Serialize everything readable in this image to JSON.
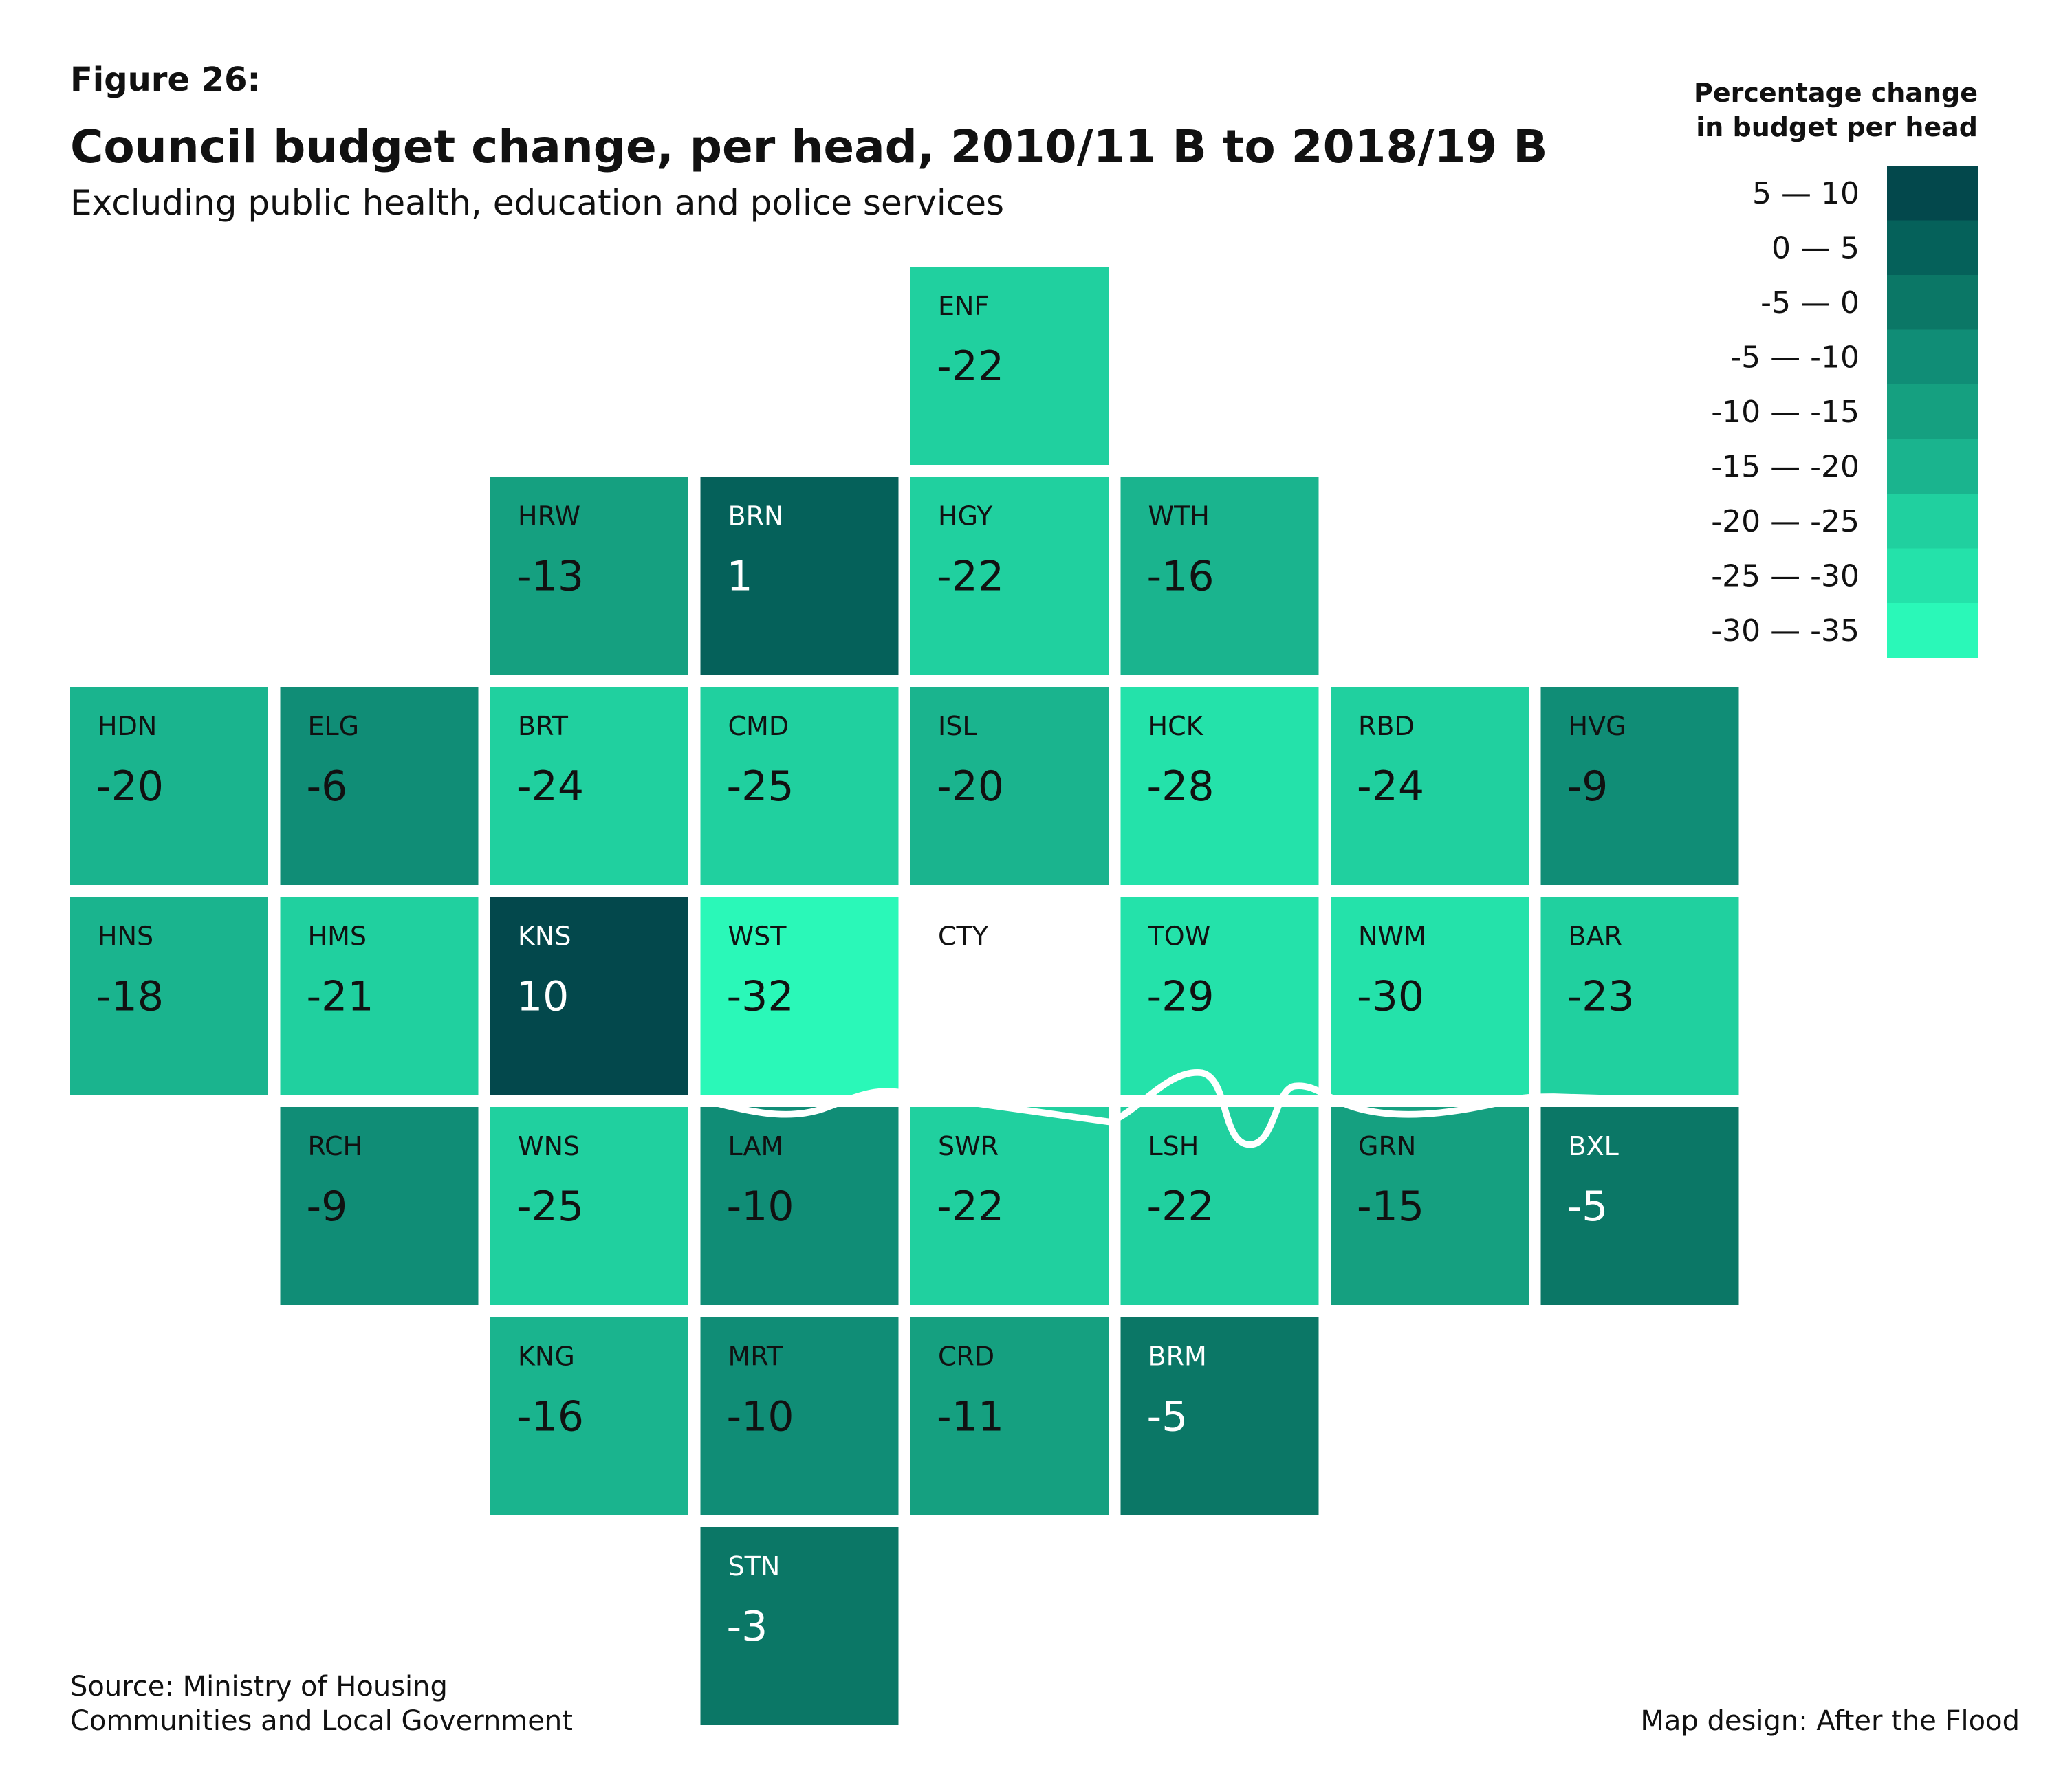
{
  "chart_data": {
    "type": "tilemap",
    "figure_label": "Figure 26:",
    "title": "Council budget change, per head, 2010/11 B to 2018/19 B",
    "subtitle": "Excluding public health, education and police services",
    "legend": {
      "title": [
        "Percentage change",
        "in budget per head"
      ],
      "bins": [
        {
          "range": [
            5,
            10
          ],
          "label": "5 — 10",
          "color": "#03484c"
        },
        {
          "range": [
            0,
            5
          ],
          "label": "0 — 5",
          "color": "#05615a"
        },
        {
          "range": [
            -5,
            0
          ],
          "label": "-5 — 0",
          "color": "#0b7766"
        },
        {
          "range": [
            -10,
            -5
          ],
          "label": "-5 — -10",
          "color": "#108d76"
        },
        {
          "range": [
            -15,
            -10
          ],
          "label": "-10 — -15",
          "color": "#15a080"
        },
        {
          "range": [
            -20,
            -15
          ],
          "label": "-15 — -20",
          "color": "#1ab48e"
        },
        {
          "range": [
            -25,
            -20
          ],
          "label": "-20 — -25",
          "color": "#20d09f"
        },
        {
          "range": [
            -30,
            -25
          ],
          "label": "-25 — -30",
          "color": "#24e2aa"
        },
        {
          "range": [
            -35,
            -30
          ],
          "label": "-30 — -35",
          "color": "#2af8b8"
        }
      ]
    },
    "grid": [
      [
        null,
        null,
        null,
        null,
        {
          "code": "ENF",
          "value": -22
        },
        null,
        null,
        null
      ],
      [
        null,
        null,
        {
          "code": "HRW",
          "value": -13
        },
        {
          "code": "BRN",
          "value": 1
        },
        {
          "code": "HGY",
          "value": -22
        },
        {
          "code": "WTH",
          "value": -16
        },
        null,
        null
      ],
      [
        {
          "code": "HDN",
          "value": -20
        },
        {
          "code": "ELG",
          "value": -6
        },
        {
          "code": "BRT",
          "value": -24
        },
        {
          "code": "CMD",
          "value": -25
        },
        {
          "code": "ISL",
          "value": -20
        },
        {
          "code": "HCK",
          "value": -28
        },
        {
          "code": "RBD",
          "value": -24
        },
        {
          "code": "HVG",
          "value": -9
        }
      ],
      [
        {
          "code": "HNS",
          "value": -18
        },
        {
          "code": "HMS",
          "value": -21
        },
        {
          "code": "KNS",
          "value": 10
        },
        {
          "code": "WST",
          "value": -32
        },
        {
          "code": "CTY",
          "value": null
        },
        {
          "code": "TOW",
          "value": -29
        },
        {
          "code": "NWM",
          "value": -30
        },
        {
          "code": "BAR",
          "value": -23
        }
      ],
      [
        null,
        {
          "code": "RCH",
          "value": -9
        },
        {
          "code": "WNS",
          "value": -25
        },
        {
          "code": "LAM",
          "value": -10
        },
        {
          "code": "SWR",
          "value": -22
        },
        {
          "code": "LSH",
          "value": -22
        },
        {
          "code": "GRN",
          "value": -15
        },
        {
          "code": "BXL",
          "value": -5
        }
      ],
      [
        null,
        null,
        {
          "code": "KNG",
          "value": -16
        },
        {
          "code": "MRT",
          "value": -10
        },
        {
          "code": "CRD",
          "value": -11
        },
        {
          "code": "BRM",
          "value": -5
        },
        null,
        null
      ],
      [
        null,
        null,
        null,
        {
          "code": "STN",
          "value": -3
        },
        null,
        null,
        null,
        null
      ]
    ],
    "source": [
      "Source: Ministry of Housing",
      "Communities and Local Government"
    ],
    "credit": "Map design: After the Flood"
  }
}
